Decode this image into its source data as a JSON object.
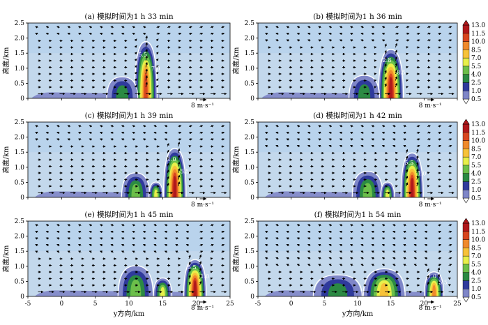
{
  "figure": {
    "shared_xlabel": "y方向/km",
    "shared_ylabel": "高度/km",
    "reference_vector": "8 m·s⁻¹",
    "colors": {
      "background": "#c3d8ec",
      "upper_band": "#b9d3ec",
      "contour_line": "#ffffff"
    }
  },
  "chart_data": [
    {
      "type": "heatmap",
      "panel": "a",
      "title": "(a) 模拟时间为1 h 33 min",
      "xlim": [
        -5,
        25
      ],
      "ylim": [
        0,
        2.5
      ],
      "xticks": [
        "-5",
        "0",
        "5",
        "10",
        "15",
        "20",
        "25"
      ],
      "yticks": [
        "0",
        "0.5",
        "1.0",
        "1.5",
        "2.0",
        "2.5"
      ],
      "reference_vector": "8 m·s⁻¹",
      "contour_labels": [
        "5.5",
        "7.0"
      ],
      "cells": [
        {
          "y": 12.5,
          "z_top": 1.85,
          "half_width": 1.6,
          "peak": 10.0
        },
        {
          "y": 9.0,
          "z_top": 0.7,
          "half_width": 2.2,
          "peak": 2.5
        }
      ],
      "low_layer": {
        "y_start": -4.5,
        "y_end": 14.5,
        "z_top": 0.2
      },
      "colorbar": {
        "levels": [
          "0.5",
          "1.0",
          "2.5",
          "4.0",
          "5.5",
          "7.0",
          "8.5",
          "10.0",
          "11.5",
          "13.0"
        ]
      }
    },
    {
      "type": "heatmap",
      "panel": "b",
      "title": "(b) 模拟时间为1 h 36 min",
      "xlim": [
        -5,
        25
      ],
      "ylim": [
        0,
        2.5
      ],
      "xticks": [
        "-5",
        "0",
        "5",
        "10",
        "15",
        "20",
        "25"
      ],
      "yticks": [
        "0",
        "0.5",
        "1.0",
        "1.5",
        "2.0",
        "2.5"
      ],
      "reference_vector": "8 m·s⁻¹",
      "contour_labels": [
        "2.8",
        "8.5"
      ],
      "cells": [
        {
          "y": 15.0,
          "z_top": 1.6,
          "half_width": 1.8,
          "peak": 13.0
        },
        {
          "y": 11.0,
          "z_top": 0.75,
          "half_width": 2.2,
          "peak": 2.5
        }
      ],
      "low_layer": {
        "y_start": -4.5,
        "y_end": 16.5,
        "z_top": 0.2
      },
      "colorbar": {
        "levels": [
          "0.5",
          "1.0",
          "2.5",
          "4.0",
          "5.5",
          "7.0",
          "8.5",
          "10.0",
          "11.5",
          "13.0"
        ]
      }
    },
    {
      "type": "heatmap",
      "panel": "c",
      "title": "(c) 模拟时间为1 h 39 min",
      "xlim": [
        -5,
        25
      ],
      "ylim": [
        0,
        2.5
      ],
      "xticks": [
        "-5",
        "0",
        "5",
        "10",
        "15",
        "20",
        "25"
      ],
      "yticks": [
        "0",
        "0.5",
        "1.0",
        "1.5",
        "2.0",
        "2.5"
      ],
      "reference_vector": "8 m·s⁻¹",
      "contour_labels": [
        "1.0",
        "5.5"
      ],
      "cells": [
        {
          "y": 16.8,
          "z_top": 1.6,
          "half_width": 1.6,
          "peak": 11.5
        },
        {
          "y": 11.0,
          "z_top": 0.8,
          "half_width": 2.0,
          "peak": 4.0
        },
        {
          "y": 14.0,
          "z_top": 0.5,
          "half_width": 1.0,
          "peak": 5.5
        }
      ],
      "low_layer": {
        "y_start": -4.0,
        "y_end": 18.0,
        "z_top": 0.2
      },
      "colorbar": {
        "levels": [
          "0.5",
          "1.0",
          "2.5",
          "4.0",
          "5.5",
          "7.0",
          "8.5",
          "10.0",
          "11.5",
          "13.0"
        ]
      }
    },
    {
      "type": "heatmap",
      "panel": "d",
      "title": "(d) 模拟时间为1 h 42 min",
      "xlim": [
        -5,
        25
      ],
      "ylim": [
        0,
        2.5
      ],
      "xticks": [
        "-5",
        "0",
        "5",
        "10",
        "15",
        "20",
        "25"
      ],
      "yticks": [
        "0",
        "0.5",
        "1.0",
        "1.5",
        "2.0",
        "2.5"
      ],
      "reference_vector": "8 m·s⁻¹",
      "contour_labels": [
        "5.5",
        "1.0"
      ],
      "cells": [
        {
          "y": 18.2,
          "z_top": 1.45,
          "half_width": 1.6,
          "peak": 11.5
        },
        {
          "y": 11.5,
          "z_top": 0.85,
          "half_width": 2.2,
          "peak": 4.0
        },
        {
          "y": 14.5,
          "z_top": 0.5,
          "half_width": 1.0,
          "peak": 5.5
        }
      ],
      "low_layer": {
        "y_start": -4.0,
        "y_end": 19.5,
        "z_top": 0.2
      },
      "colorbar": {
        "levels": [
          "0.5",
          "1.0",
          "2.5",
          "4.0",
          "5.5",
          "7.0",
          "8.5",
          "10.0",
          "11.5",
          "13.0"
        ]
      }
    },
    {
      "type": "heatmap",
      "panel": "e",
      "title": "(e) 模拟时间为1 h 45 min",
      "xlim": [
        -5,
        25
      ],
      "ylim": [
        0,
        2.5
      ],
      "xticks": [
        "-5",
        "0",
        "5",
        "10",
        "15",
        "20",
        "25"
      ],
      "yticks": [
        "0",
        "0.5",
        "1.0",
        "1.5",
        "2.0",
        "2.5"
      ],
      "reference_vector": "8 m·s⁻¹",
      "contour_labels": [
        "5.5",
        "1.0"
      ],
      "cells": [
        {
          "y": 19.8,
          "z_top": 1.2,
          "half_width": 1.6,
          "peak": 11.5
        },
        {
          "y": 11.0,
          "z_top": 1.0,
          "half_width": 2.5,
          "peak": 4.0
        },
        {
          "y": 15.0,
          "z_top": 0.6,
          "half_width": 1.3,
          "peak": 5.5
        }
      ],
      "low_layer": {
        "y_start": -4.0,
        "y_end": 21.0,
        "z_top": 0.2
      },
      "colorbar": {
        "levels": [
          "0.5",
          "1.0",
          "2.5",
          "4.0",
          "5.5",
          "7.0",
          "8.5",
          "10.0",
          "11.5",
          "13.0"
        ]
      }
    },
    {
      "type": "heatmap",
      "panel": "f",
      "title": "(f) 模拟时间为1 h 54 min",
      "xlim": [
        -5,
        25
      ],
      "ylim": [
        0,
        2.5
      ],
      "xticks": [
        "-5",
        "0",
        "5",
        "10",
        "15",
        "20",
        "25"
      ],
      "yticks": [
        "0",
        "0.5",
        "1.0",
        "1.5",
        "2.0",
        "2.5"
      ],
      "reference_vector": "8 m·s⁻¹",
      "contour_labels": [
        "1.0",
        "5.5"
      ],
      "cells": [
        {
          "y": 21.5,
          "z_top": 0.8,
          "half_width": 1.4,
          "peak": 8.5
        },
        {
          "y": 14.0,
          "z_top": 0.9,
          "half_width": 3.0,
          "peak": 7.0
        },
        {
          "y": 7.0,
          "z_top": 0.7,
          "half_width": 3.5,
          "peak": 2.5
        }
      ],
      "low_layer": {
        "y_start": -4.0,
        "y_end": 23.0,
        "z_top": 0.2
      },
      "colorbar": {
        "levels": [
          "0.5",
          "1.0",
          "2.5",
          "4.0",
          "5.5",
          "7.0",
          "8.5",
          "10.0",
          "11.5",
          "13.0"
        ]
      }
    }
  ]
}
